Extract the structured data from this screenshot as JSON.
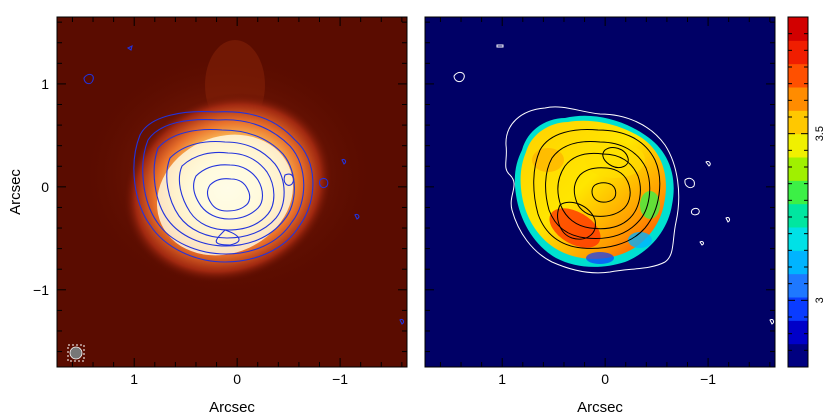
{
  "chart_data": [
    {
      "type": "heatmap",
      "panel": "left",
      "title": "",
      "xlabel": "Arcsec",
      "ylabel": "Arcsec",
      "xlim": [
        1.75,
        -1.65
      ],
      "ylim": [
        -1.75,
        1.65
      ],
      "x_ticks": [
        1,
        0,
        -1
      ],
      "x_tick_labels": [
        "1",
        "0",
        "−1"
      ],
      "y_ticks": [
        1,
        0,
        -1
      ],
      "y_tick_labels": [
        "1",
        "0",
        "−1"
      ],
      "image_colormap": "heat (dark red to white)",
      "contour_color": "#2233dd",
      "background_color": "#5a0c00",
      "beam": {
        "x": 1.55,
        "y": -1.6,
        "label": "beam"
      },
      "source_center": [
        0.0,
        0.0
      ]
    },
    {
      "type": "heatmap",
      "panel": "right",
      "title": "",
      "xlabel": "Arcsec",
      "ylabel": "",
      "xlim": [
        1.75,
        -1.65
      ],
      "ylim": [
        -1.75,
        1.65
      ],
      "x_ticks": [
        1,
        0,
        -1
      ],
      "x_tick_labels": [
        "1",
        "0",
        "−1"
      ],
      "image_colormap": "rainbow (blue to red)",
      "contour_color": "#000000",
      "outer_contour_color": "#ffffff",
      "background_color": "#000066",
      "colorbar": {
        "range": [
          2.8,
          3.85
        ],
        "ticks": [
          3,
          3.5
        ],
        "tick_labels": [
          "3",
          "3.5"
        ],
        "colors": [
          "#000080",
          "#0000c8",
          "#0a3cff",
          "#1e78ff",
          "#00b4ff",
          "#00e1e6",
          "#00e6a0",
          "#3cf046",
          "#a0f000",
          "#f0f000",
          "#ffc800",
          "#ff8c00",
          "#ff5000",
          "#f01e00",
          "#d20000"
        ]
      }
    }
  ]
}
